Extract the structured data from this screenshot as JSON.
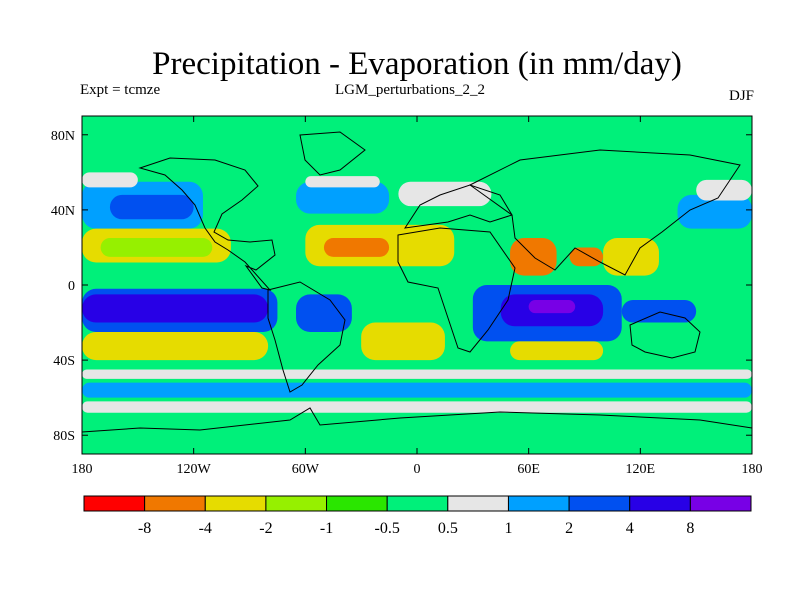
{
  "chart_data": {
    "type": "heatmap",
    "title": "Precipitation - Evaporation (in mm/day)",
    "subtitle_left": "Expt = tcmze",
    "subtitle_center": "LGM_perturbations_2_2",
    "subtitle_right": "DJF",
    "x_range": [
      -180,
      180
    ],
    "y_range": [
      -90,
      90
    ],
    "x_ticks": [
      {
        "value": -180,
        "label": "180"
      },
      {
        "value": -120,
        "label": "120W"
      },
      {
        "value": -60,
        "label": "60W"
      },
      {
        "value": 0,
        "label": "0"
      },
      {
        "value": 60,
        "label": "60E"
      },
      {
        "value": 120,
        "label": "120E"
      },
      {
        "value": 180,
        "label": "180"
      }
    ],
    "y_ticks": [
      {
        "value": 80,
        "label": "80N"
      },
      {
        "value": 40,
        "label": "40N"
      },
      {
        "value": 0,
        "label": "0"
      },
      {
        "value": -40,
        "label": "40S"
      },
      {
        "value": -80,
        "label": "80S"
      }
    ],
    "colorbar": {
      "colors": [
        "#ff0000",
        "#f07800",
        "#e6dc00",
        "#96f000",
        "#2ae600",
        "#00f07a",
        "#e6e6e6",
        "#00a0ff",
        "#0050f0",
        "#2800e6",
        "#7800e6"
      ],
      "boundaries": [
        "-8",
        "-4",
        "-2",
        "-1",
        "-0.5",
        "0.5",
        "1",
        "2",
        "4",
        "8"
      ]
    },
    "background_color": "#00f07a",
    "regions": [
      {
        "name": "north-pacific-storm-track",
        "class": 8,
        "lon": [
          -165,
          -120
        ],
        "lat": [
          35,
          48
        ]
      },
      {
        "name": "north-pacific-moist-band",
        "class": 7,
        "lon": [
          -180,
          -115
        ],
        "lat": [
          30,
          55
        ]
      },
      {
        "name": "north-pacific-white",
        "class": 6,
        "lon": [
          -180,
          -150
        ],
        "lat": [
          52,
          60
        ]
      },
      {
        "name": "north-atlantic-storm-track",
        "class": 7,
        "lon": [
          -65,
          -15
        ],
        "lat": [
          38,
          55
        ]
      },
      {
        "name": "north-atlantic-white",
        "class": 6,
        "lon": [
          -60,
          -20
        ],
        "lat": [
          52,
          58
        ]
      },
      {
        "name": "europe-white",
        "class": 6,
        "lon": [
          -10,
          40
        ],
        "lat": [
          42,
          55
        ]
      },
      {
        "name": "west-pacific-storm",
        "class": 7,
        "lon": [
          140,
          180
        ],
        "lat": [
          30,
          48
        ]
      },
      {
        "name": "west-pacific-white",
        "class": 6,
        "lon": [
          150,
          180
        ],
        "lat": [
          45,
          56
        ]
      },
      {
        "name": "nh-subtropic-pacific",
        "class": 2,
        "lon": [
          -180,
          -100
        ],
        "lat": [
          12,
          30
        ]
      },
      {
        "name": "nh-subtropic-pacific-inner",
        "class": 3,
        "lon": [
          -170,
          -110
        ],
        "lat": [
          15,
          25
        ]
      },
      {
        "name": "nh-subtropic-atlantic",
        "class": 2,
        "lon": [
          -60,
          20
        ],
        "lat": [
          10,
          32
        ]
      },
      {
        "name": "nh-subtropic-atlantic-core",
        "class": 1,
        "lon": [
          -50,
          -15
        ],
        "lat": [
          15,
          25
        ]
      },
      {
        "name": "arabian-sea",
        "class": 1,
        "lon": [
          50,
          75
        ],
        "lat": [
          5,
          25
        ]
      },
      {
        "name": "bay-of-bengal",
        "class": 1,
        "lon": [
          82,
          100
        ],
        "lat": [
          10,
          20
        ]
      },
      {
        "name": "south-china-sea",
        "class": 2,
        "lon": [
          100,
          130
        ],
        "lat": [
          5,
          25
        ]
      },
      {
        "name": "sh-pacific-itcz",
        "class": 9,
        "lon": [
          -180,
          -80
        ],
        "lat": [
          -20,
          -5
        ]
      },
      {
        "name": "sh-pacific-itcz-outer",
        "class": 8,
        "lon": [
          -180,
          -75
        ],
        "lat": [
          -25,
          -2
        ]
      },
      {
        "name": "indian-ocean-rain",
        "class": 9,
        "lon": [
          45,
          100
        ],
        "lat": [
          -22,
          -5
        ]
      },
      {
        "name": "indian-ocean-outer",
        "class": 8,
        "lon": [
          30,
          110
        ],
        "lat": [
          -30,
          0
        ]
      },
      {
        "name": "indian-ocean-core",
        "class": 10,
        "lon": [
          60,
          85
        ],
        "lat": [
          -15,
          -8
        ]
      },
      {
        "name": "south-america-convergence",
        "class": 8,
        "lon": [
          -65,
          -35
        ],
        "lat": [
          -25,
          -5
        ]
      },
      {
        "name": "australia-north",
        "class": 8,
        "lon": [
          110,
          150
        ],
        "lat": [
          -20,
          -8
        ]
      },
      {
        "name": "sh-subtropic-pacific",
        "class": 2,
        "lon": [
          -180,
          -80
        ],
        "lat": [
          -40,
          -25
        ]
      },
      {
        "name": "sh-subtropic-atlantic",
        "class": 2,
        "lon": [
          -30,
          15
        ],
        "lat": [
          -40,
          -20
        ]
      },
      {
        "name": "sh-subtropic-indian",
        "class": 2,
        "lon": [
          50,
          100
        ],
        "lat": [
          -40,
          -30
        ]
      },
      {
        "name": "southern-ocean-white",
        "class": 6,
        "lon": [
          -180,
          180
        ],
        "lat": [
          -50,
          -45
        ]
      },
      {
        "name": "southern-ocean-blue",
        "class": 7,
        "lon": [
          -180,
          180
        ],
        "lat": [
          -60,
          -52
        ]
      },
      {
        "name": "southern-ocean-white-2",
        "class": 6,
        "lon": [
          -180,
          180
        ],
        "lat": [
          -68,
          -62
        ]
      },
      {
        "name": "antarctic-coast",
        "class": 5,
        "lon": [
          -180,
          180
        ],
        "lat": [
          -90,
          -70
        ]
      }
    ]
  }
}
